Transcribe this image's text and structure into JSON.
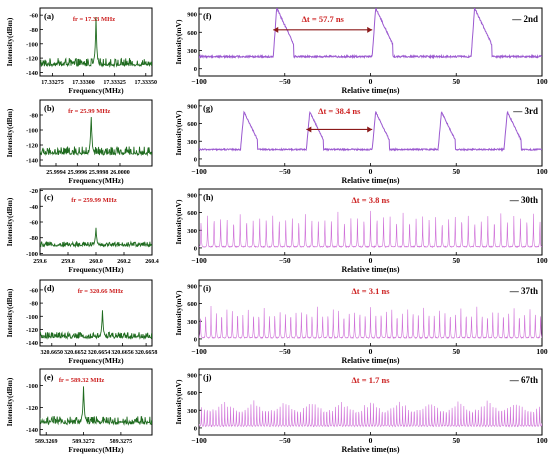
{
  "figure": {
    "left_column_ylabel": "Intensity(dBm)",
    "left_column_xlabel": "Frequency(MHz)",
    "right_column_ylabel": "Intensity(mV)",
    "right_column_xlabel": "Relative time(ns)"
  },
  "chart_data": [
    {
      "id": "a",
      "type": "line",
      "panel_label": "(a)",
      "annotation": "fr = 17.33 MHz",
      "xlabel": "Frequency(MHz)",
      "ylabel": "Intensity(dBm)",
      "xlim": [
        17.33265,
        17.33355
      ],
      "ylim": [
        -145,
        -50
      ],
      "xticks": [
        17.33275,
        17.333,
        17.33325,
        17.3335
      ],
      "xtick_labels": [
        "17.33275",
        "17.33300",
        "17.33325",
        "17.33350"
      ],
      "yticks": [
        -140,
        -120,
        -100,
        -80,
        -60
      ],
      "yticks_labels": [
        "-140",
        "-120",
        "-100",
        "-80",
        "-60"
      ],
      "peak": {
        "x": 17.3331,
        "y": -62
      },
      "noise_floor": -130,
      "noise_amplitude": 10,
      "line_color": "#1f6b1f"
    },
    {
      "id": "b",
      "type": "line",
      "panel_label": "(b)",
      "annotation": "fr = 25.99 MHz",
      "xlabel": "Frequency(MHz)",
      "ylabel": "Intensity(dBm)",
      "xlim": [
        25.99925,
        26.0003
      ],
      "ylim": [
        -148,
        -60
      ],
      "xticks": [
        25.9994,
        25.9996,
        25.9998,
        26.0
      ],
      "xtick_labels": [
        "25.9994",
        "25.9996",
        "25.9998",
        "26.0000"
      ],
      "yticks": [
        -140,
        -120,
        -100,
        -80
      ],
      "yticks_labels": [
        "-140",
        "-120",
        "-100",
        "-80"
      ],
      "peak": {
        "x": 25.99973,
        "y": -78
      },
      "noise_floor": -132,
      "noise_amplitude": 10,
      "line_color": "#1f6b1f"
    },
    {
      "id": "c",
      "type": "line",
      "panel_label": "(c)",
      "annotation": "fr = 259.99 MHz",
      "xlabel": "Frequency(MHz)",
      "ylabel": "Intensity(dBm)",
      "xlim": [
        259.6,
        260.4
      ],
      "ylim": [
        -102,
        -18
      ],
      "xticks": [
        259.6,
        259.8,
        260.0,
        260.2,
        260.4
      ],
      "xtick_labels": [
        "259.6",
        "259.8",
        "260.0",
        "260.2",
        "260.4"
      ],
      "yticks": [
        -100,
        -80,
        -60,
        -40,
        -20
      ],
      "yticks_labels": [
        "-100",
        "-80",
        "-60",
        "-40",
        "-20"
      ],
      "peak": {
        "x": 260.0,
        "y": -68
      },
      "noise_floor": -90,
      "noise_amplitude": 5,
      "line_color": "#1f6b1f"
    },
    {
      "id": "d",
      "type": "line",
      "panel_label": "(d)",
      "annotation": "fr = 320.66 MHz",
      "xlabel": "Frequency(MHz)",
      "ylabel": "Intensity(dBm)",
      "xlim": [
        320.6649,
        320.66585
      ],
      "ylim": [
        -145,
        -45
      ],
      "xticks": [
        320.665,
        320.6652,
        320.6654,
        320.6656,
        320.6658
      ],
      "xtick_labels": [
        "320.6650",
        "320.6652",
        "320.6654",
        "320.6656",
        "320.6658"
      ],
      "yticks": [
        -140,
        -120,
        -100,
        -80,
        -60
      ],
      "yticks_labels": [
        "-140",
        "-120",
        "-100",
        "-80",
        "-60"
      ],
      "peak": {
        "x": 320.66543,
        "y": -90
      },
      "noise_floor": -132,
      "noise_amplitude": 8,
      "line_color": "#1f6b1f"
    },
    {
      "id": "e",
      "type": "line",
      "panel_label": "(e)",
      "annotation": "fr = 589.32 MHz",
      "xlabel": "Frequency(MHz)",
      "ylabel": "Intensity(dBm)",
      "xlim": [
        589.32685,
        589.32775
      ],
      "ylim": [
        -145,
        -85
      ],
      "xticks": [
        589.3269,
        589.3272,
        589.3275
      ],
      "xtick_labels": [
        "589.3269",
        "589.3272",
        "589.3275"
      ],
      "yticks": [
        -140,
        -120,
        -100
      ],
      "yticks_labels": [
        "-140",
        "-120",
        "-100"
      ],
      "peak": {
        "x": 589.3272,
        "y": -98
      },
      "noise_floor": -134,
      "noise_amplitude": 6,
      "line_color": "#1f6b1f"
    },
    {
      "id": "f",
      "type": "line",
      "panel_label": "(f)",
      "harmonic_label": "— 2nd",
      "delta_label": "Δt = 57.7 ns",
      "xlabel": "Relative time(ns)",
      "ylabel": "Intensity(mV)",
      "xlim": [
        -100,
        100
      ],
      "ylim": [
        -120,
        1000
      ],
      "xticks": [
        -100,
        -50,
        0,
        50,
        100
      ],
      "xtick_labels": [
        "−100",
        "−50",
        "0",
        "50",
        "100"
      ],
      "yticks": [
        0,
        300,
        600,
        900
      ],
      "yticks_labels": [
        "0",
        "300",
        "600",
        "900"
      ],
      "period_ns": 57.7,
      "phase_ns": 1.0,
      "pulse_height": 800,
      "baseline": 200,
      "noise_amplitude": 15,
      "pulse_shape": "wide",
      "pulse_rise_ns": 2,
      "pulse_decay_ns": 10,
      "arrow": {
        "from_x": -56.7,
        "to_x": 1.0,
        "y": 640
      },
      "line_color": "#9b59d0"
    },
    {
      "id": "g",
      "type": "line",
      "panel_label": "(g)",
      "harmonic_label": "— 3rd",
      "delta_label": "Δt = 38.4 ns",
      "xlabel": "Relative time(ns)",
      "ylabel": "Intensity(mV)",
      "xlim": [
        -100,
        100
      ],
      "ylim": [
        -120,
        1000
      ],
      "xticks": [
        -100,
        -50,
        0,
        50,
        100
      ],
      "xtick_labels": [
        "−100",
        "−50",
        "0",
        "50",
        "100"
      ],
      "yticks": [
        0,
        300,
        600,
        900
      ],
      "yticks_labels": [
        "0",
        "300",
        "600",
        "900"
      ],
      "period_ns": 38.4,
      "phase_ns": 1.0,
      "pulse_height": 640,
      "baseline": 160,
      "noise_amplitude": 12,
      "pulse_shape": "wide",
      "pulse_rise_ns": 2,
      "pulse_decay_ns": 8,
      "arrow": {
        "from_x": -37.4,
        "to_x": 1.0,
        "y": 500
      },
      "line_color": "#9b59d0"
    },
    {
      "id": "h",
      "type": "line",
      "panel_label": "(h)",
      "harmonic_label": "— 30th",
      "delta_label": "Δt = 3.8 ns",
      "xlabel": "Relative time(ns)",
      "ylabel": "Intensity(mV)",
      "xlim": [
        -100,
        100
      ],
      "ylim": [
        -120,
        1000
      ],
      "xticks": [
        -100,
        -50,
        0,
        50,
        100
      ],
      "xtick_labels": [
        "−100",
        "−50",
        "0",
        "50",
        "100"
      ],
      "yticks": [
        0,
        300,
        600,
        900
      ],
      "yticks_labels": [
        "0",
        "300",
        "600",
        "900"
      ],
      "period_ns": 3.8,
      "phase_ns": 0.0,
      "pulse_height": 560,
      "baseline": 20,
      "noise_amplitude": 8,
      "pulse_shape": "narrow",
      "line_color": "#cf6fd8"
    },
    {
      "id": "i",
      "type": "line",
      "panel_label": "(i)",
      "harmonic_label": "— 37th",
      "delta_label": "Δt = 3.1 ns",
      "xlabel": "Relative time(ns)",
      "ylabel": "Intensity(mV)",
      "xlim": [
        -100,
        100
      ],
      "ylim": [
        -120,
        1000
      ],
      "xticks": [
        -100,
        -50,
        0,
        50,
        100
      ],
      "xtick_labels": [
        "−100",
        "−50",
        "0",
        "50",
        "100"
      ],
      "yticks": [
        0,
        300,
        600,
        900
      ],
      "yticks_labels": [
        "0",
        "300",
        "600",
        "900"
      ],
      "period_ns": 3.1,
      "phase_ns": 0.0,
      "pulse_height": 500,
      "baseline": 20,
      "noise_amplitude": 8,
      "pulse_shape": "narrow",
      "line_color": "#cf6fd8"
    },
    {
      "id": "j",
      "type": "line",
      "panel_label": "(j)",
      "harmonic_label": "— 67th",
      "delta_label": "Δt = 1.7 ns",
      "xlabel": "Relative time(ns)",
      "ylabel": "Intensity(mV)",
      "xlim": [
        -100,
        100
      ],
      "ylim": [
        -120,
        1000
      ],
      "xticks": [
        -100,
        -50,
        0,
        50,
        100
      ],
      "xtick_labels": [
        "−100",
        "−50",
        "0",
        "50",
        "100"
      ],
      "yticks": [
        0,
        300,
        600,
        900
      ],
      "yticks_labels": [
        "0",
        "300",
        "600",
        "900"
      ],
      "period_ns": 1.7,
      "phase_ns": 0.0,
      "pulse_height": 400,
      "baseline": 30,
      "noise_amplitude": 8,
      "pulse_shape": "narrow",
      "line_color": "#cf6fd8"
    }
  ],
  "colors": {
    "spectrum_line": "#1f6b1f",
    "pulse_line_wide": "#9b59d0",
    "pulse_line_narrow": "#cf6fd8",
    "annotation_red": "#cc1f1f",
    "arrow": "#8b1a1a"
  }
}
